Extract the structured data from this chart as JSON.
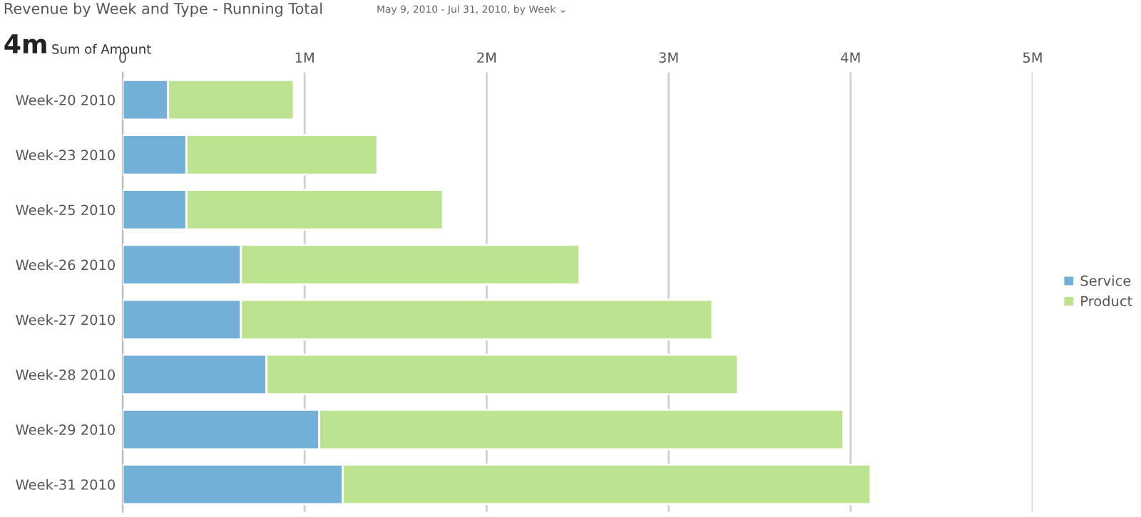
{
  "chart_data": {
    "type": "bar",
    "orientation": "horizontal",
    "stacked": true,
    "title": "Revenue by Week and Type - Running Total",
    "subtitle": "May 9, 2010 - Jul 31, 2010, by Week ⌄",
    "annotations": [
      "4m",
      "Sum of Amount"
    ],
    "categories": [
      "Week-20 2010",
      "Week-23 2010",
      "Week-25 2010",
      "Week-26 2010",
      "Week-27 2010",
      "Week-28 2010",
      "Week-29 2010",
      "Week-31 2010"
    ],
    "series": [
      {
        "name": "Service",
        "color": "#73b0d8",
        "values": [
          0.25,
          0.35,
          0.35,
          0.65,
          0.65,
          0.79,
          1.08,
          1.21
        ]
      },
      {
        "name": "Product",
        "color": "#bce38f",
        "values": [
          0.69,
          1.05,
          1.41,
          1.86,
          2.59,
          2.59,
          2.88,
          2.9
        ]
      }
    ],
    "xlim": [
      0,
      5
    ],
    "xticks": [
      0,
      {
        "value": 1,
        "label": "1M"
      },
      {
        "value": 2,
        "label": "2M"
      },
      {
        "value": 3,
        "label": "3M"
      },
      {
        "value": 4,
        "label": "4M"
      },
      {
        "value": 5,
        "label": "5M"
      }
    ],
    "grid": "x",
    "legend": "right"
  }
}
